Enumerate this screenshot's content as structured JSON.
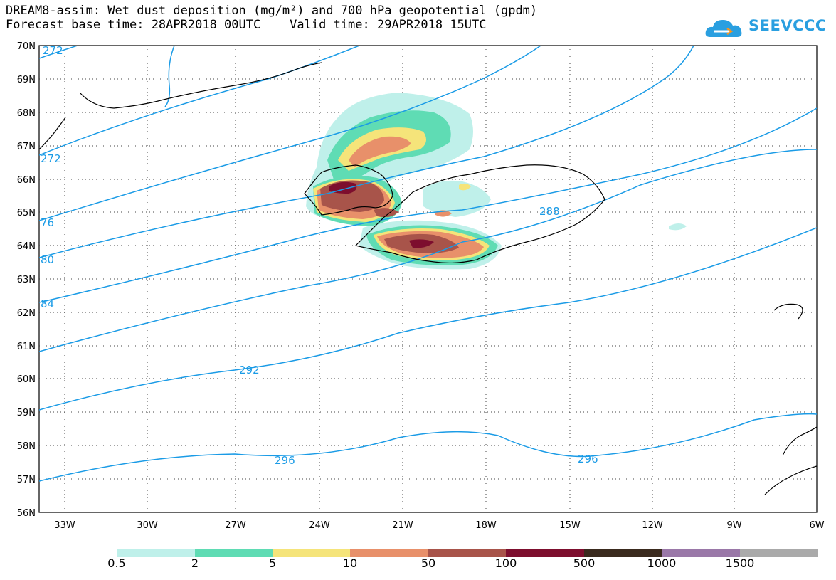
{
  "title": {
    "line1": "DREAM8-assim: Wet dust deposition (mg/m²) and 700 hPa geopotential (gpdm)",
    "line2": "Forecast base time: 28APR2018 00UTC    Valid time: 29APR2018 15UTC"
  },
  "logo": {
    "text": "SEEVCCC",
    "icon": "cloud-icon",
    "color": "#2a9fe0"
  },
  "map": {
    "lat_labels": [
      "70N",
      "69N",
      "68N",
      "67N",
      "66N",
      "65N",
      "64N",
      "63N",
      "62N",
      "61N",
      "60N",
      "59N",
      "58N",
      "57N",
      "56N"
    ],
    "lon_labels": [
      "33W",
      "30W",
      "27W",
      "24W",
      "21W",
      "18W",
      "15W",
      "12W",
      "9W",
      "6W"
    ],
    "lat_range": [
      56,
      70
    ],
    "lon_range": [
      -34.3,
      -6
    ],
    "grid": "dotted",
    "contour_color": "#1a9be6",
    "contour_labels": [
      "272",
      "76",
      "80",
      "84",
      "288",
      "292",
      "296",
      "296"
    ]
  },
  "colorbar": {
    "labels": [
      "0.5",
      "2",
      "5",
      "10",
      "50",
      "100",
      "500",
      "1000",
      "1500"
    ],
    "colors": [
      "#bff0ea",
      "#5fdcb4",
      "#f5e47a",
      "#e8906a",
      "#a8544a",
      "#7d0e2e",
      "#3a2a1e",
      "#9a78a8",
      "#aaaaaa"
    ]
  }
}
